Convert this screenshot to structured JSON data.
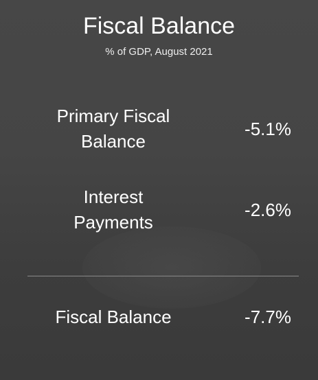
{
  "title": "Fiscal Balance",
  "subtitle": "% of GDP, August 2021",
  "rows": [
    {
      "label": "Primary Fiscal Balance",
      "value": "-5.1%"
    },
    {
      "label": "Interest Payments",
      "value": "-2.6%"
    }
  ],
  "total": {
    "label": "Fiscal Balance",
    "value": "-7.7%"
  }
}
